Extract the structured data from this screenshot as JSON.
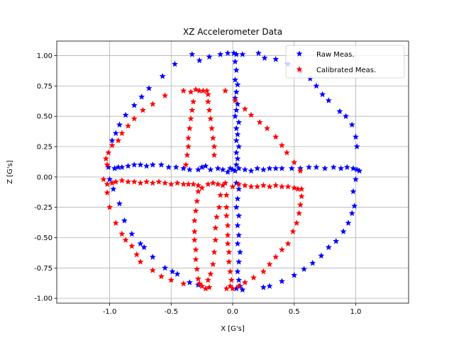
{
  "chart_data": {
    "type": "scatter",
    "title": "XZ Accelerometer Data",
    "xlabel": "X [G's]",
    "ylabel": "Z [G's]",
    "xlim": [
      -1.43,
      1.43
    ],
    "ylim": [
      -1.04,
      1.12
    ],
    "xticks": [
      "-1.0",
      "-0.5",
      "0.0",
      "0.5",
      "1.0"
    ],
    "yticks": [
      "-1.00",
      "-0.75",
      "-0.50",
      "-0.25",
      "0.00",
      "0.25",
      "0.50",
      "0.75",
      "1.00"
    ],
    "grid": true,
    "legend_position": "top-right",
    "marker": "star",
    "series": [
      {
        "name": "Raw Meas.",
        "color": "#0000ff",
        "points": [
          [
            -0.33,
            1.01
          ],
          [
            -0.27,
            0.96
          ],
          [
            -0.19,
            0.99
          ],
          [
            -0.1,
            1.01
          ],
          [
            -0.04,
            1.02
          ],
          [
            0.01,
            1.02
          ],
          [
            0.03,
            1.01
          ],
          [
            0.08,
            1.01
          ],
          [
            0.21,
            1.02
          ],
          [
            0.26,
            0.98
          ],
          [
            0.35,
            0.97
          ],
          [
            0.45,
            0.93
          ],
          [
            0.55,
            0.87
          ],
          [
            0.63,
            0.81
          ],
          [
            0.68,
            0.75
          ],
          [
            0.73,
            0.68
          ],
          [
            0.78,
            0.63
          ],
          [
            0.87,
            0.54
          ],
          [
            0.92,
            0.5
          ],
          [
            0.97,
            0.43
          ],
          [
            1.0,
            0.33
          ],
          [
            1.01,
            0.25
          ],
          [
            -0.47,
            0.93
          ],
          [
            -0.57,
            0.83
          ],
          [
            -0.68,
            0.73
          ],
          [
            -0.74,
            0.66
          ],
          [
            -0.8,
            0.59
          ],
          [
            -0.87,
            0.51
          ],
          [
            -0.92,
            0.43
          ],
          [
            -0.95,
            0.36
          ],
          [
            -0.98,
            0.3
          ],
          [
            -1.01,
            0.08
          ],
          [
            -0.96,
            0.07
          ],
          [
            -0.93,
            0.08
          ],
          [
            -0.9,
            0.08
          ],
          [
            -0.85,
            0.09
          ],
          [
            -0.8,
            0.1
          ],
          [
            -0.75,
            0.1
          ],
          [
            -0.7,
            0.09
          ],
          [
            -0.65,
            0.1
          ],
          [
            -0.58,
            0.1
          ],
          [
            -0.52,
            0.08
          ],
          [
            -0.46,
            0.08
          ],
          [
            -0.4,
            0.07
          ],
          [
            -0.35,
            0.06
          ],
          [
            -0.28,
            0.06
          ],
          [
            -0.25,
            0.08
          ],
          [
            -0.22,
            0.09
          ],
          [
            -0.18,
            0.06
          ],
          [
            -0.12,
            0.07
          ],
          [
            -0.08,
            0.06
          ],
          [
            -0.04,
            0.04
          ],
          [
            -0.02,
            0.07
          ],
          [
            0.0,
            0.06
          ],
          [
            0.02,
            0.05
          ],
          [
            0.05,
            0.07
          ],
          [
            0.1,
            0.06
          ],
          [
            0.15,
            0.05
          ],
          [
            0.2,
            0.07
          ],
          [
            0.25,
            0.06
          ],
          [
            0.3,
            0.07
          ],
          [
            0.35,
            0.07
          ],
          [
            0.4,
            0.07
          ],
          [
            0.48,
            0.07
          ],
          [
            0.55,
            0.07
          ],
          [
            0.62,
            0.08
          ],
          [
            0.68,
            0.08
          ],
          [
            0.75,
            0.07
          ],
          [
            0.82,
            0.08
          ],
          [
            0.88,
            0.07
          ],
          [
            0.93,
            0.08
          ],
          [
            0.98,
            0.07
          ],
          [
            1.01,
            0.06
          ],
          [
            1.03,
            0.05
          ],
          [
            1.0,
            -0.02
          ],
          [
            0.98,
            -0.12
          ],
          [
            0.02,
            0.95
          ],
          [
            0.03,
            0.88
          ],
          [
            0.02,
            0.8
          ],
          [
            0.04,
            0.76
          ],
          [
            0.03,
            0.7
          ],
          [
            0.02,
            0.65
          ],
          [
            0.04,
            0.6
          ],
          [
            0.03,
            0.55
          ],
          [
            0.02,
            0.5
          ],
          [
            0.05,
            0.45
          ],
          [
            0.03,
            0.4
          ],
          [
            0.04,
            0.35
          ],
          [
            0.03,
            0.3
          ],
          [
            0.05,
            0.25
          ],
          [
            0.03,
            0.2
          ],
          [
            0.04,
            0.15
          ],
          [
            0.03,
            0.1
          ],
          [
            0.03,
            -0.05
          ],
          [
            0.05,
            -0.1
          ],
          [
            0.04,
            -0.18
          ],
          [
            0.03,
            -0.25
          ],
          [
            0.05,
            -0.32
          ],
          [
            0.04,
            -0.4
          ],
          [
            0.05,
            -0.48
          ],
          [
            0.04,
            -0.55
          ],
          [
            0.06,
            -0.62
          ],
          [
            0.05,
            -0.7
          ],
          [
            0.04,
            -0.78
          ],
          [
            0.05,
            -0.85
          ],
          [
            0.06,
            -0.9
          ],
          [
            0.03,
            -0.92
          ],
          [
            0.08,
            -0.93
          ],
          [
            -1.0,
            -0.02
          ],
          [
            -0.97,
            -0.1
          ],
          [
            -0.92,
            -0.22
          ],
          [
            -0.88,
            -0.36
          ],
          [
            -0.82,
            -0.47
          ],
          [
            -0.75,
            -0.55
          ],
          [
            -0.72,
            -0.58
          ],
          [
            -0.65,
            -0.66
          ],
          [
            -0.55,
            -0.75
          ],
          [
            -0.49,
            -0.78
          ],
          [
            -0.45,
            -0.8
          ],
          [
            -0.35,
            -0.87
          ],
          [
            -0.28,
            -0.89
          ],
          [
            0.25,
            -0.91
          ],
          [
            0.3,
            -0.9
          ],
          [
            0.4,
            -0.86
          ],
          [
            0.5,
            -0.81
          ],
          [
            0.58,
            -0.76
          ],
          [
            0.65,
            -0.71
          ],
          [
            0.72,
            -0.65
          ],
          [
            0.78,
            -0.58
          ],
          [
            0.84,
            -0.53
          ],
          [
            0.9,
            -0.45
          ],
          [
            0.94,
            -0.38
          ],
          [
            0.97,
            -0.3
          ],
          [
            0.99,
            -0.24
          ]
        ]
      },
      {
        "name": "Calibrated Meas.",
        "color": "#ff0000",
        "points": [
          [
            -0.4,
            0.71
          ],
          [
            -0.34,
            0.7
          ],
          [
            -0.3,
            0.72
          ],
          [
            -0.27,
            0.71
          ],
          [
            -0.24,
            0.71
          ],
          [
            -0.21,
            0.71
          ],
          [
            -0.2,
            0.68
          ],
          [
            -0.32,
            0.62
          ],
          [
            -0.33,
            0.55
          ],
          [
            -0.34,
            0.48
          ],
          [
            -0.35,
            0.4
          ],
          [
            -0.36,
            0.32
          ],
          [
            -0.36,
            0.25
          ],
          [
            -0.37,
            0.18
          ],
          [
            -0.38,
            0.1
          ],
          [
            -0.2,
            0.62
          ],
          [
            -0.19,
            0.55
          ],
          [
            -0.18,
            0.48
          ],
          [
            -0.17,
            0.4
          ],
          [
            -0.16,
            0.32
          ],
          [
            -0.15,
            0.25
          ],
          [
            -0.15,
            0.18
          ],
          [
            -0.06,
            0.71
          ],
          [
            0.02,
            0.63
          ],
          [
            0.1,
            0.56
          ],
          [
            0.15,
            0.51
          ],
          [
            0.22,
            0.45
          ],
          [
            0.28,
            0.4
          ],
          [
            0.35,
            0.33
          ],
          [
            0.4,
            0.26
          ],
          [
            0.44,
            0.2
          ],
          [
            0.5,
            0.12
          ],
          [
            0.55,
            0.05
          ],
          [
            -0.55,
            0.67
          ],
          [
            -0.65,
            0.6
          ],
          [
            -0.73,
            0.55
          ],
          [
            -0.8,
            0.48
          ],
          [
            -0.85,
            0.42
          ],
          [
            -0.9,
            0.36
          ],
          [
            -0.93,
            0.3
          ],
          [
            -0.98,
            0.26
          ],
          [
            -1.01,
            0.2
          ],
          [
            -1.03,
            0.15
          ],
          [
            -1.02,
            0.1
          ],
          [
            -1.05,
            -0.02
          ],
          [
            -1.02,
            -0.06
          ],
          [
            -0.98,
            -0.05
          ],
          [
            -0.95,
            -0.04
          ],
          [
            -0.9,
            -0.03
          ],
          [
            -0.85,
            -0.04
          ],
          [
            -0.8,
            -0.04
          ],
          [
            -0.75,
            -0.05
          ],
          [
            -0.7,
            -0.04
          ],
          [
            -0.65,
            -0.05
          ],
          [
            -0.6,
            -0.04
          ],
          [
            -0.55,
            -0.05
          ],
          [
            -0.5,
            -0.06
          ],
          [
            -0.45,
            -0.05
          ],
          [
            -0.4,
            -0.06
          ],
          [
            -0.36,
            -0.06
          ],
          [
            -0.32,
            -0.06
          ],
          [
            -0.28,
            -0.07
          ],
          [
            -0.25,
            -0.09
          ],
          [
            -0.2,
            -0.06
          ],
          [
            -0.16,
            -0.05
          ],
          [
            -0.12,
            -0.06
          ],
          [
            -0.08,
            -0.07
          ],
          [
            -0.06,
            -0.05
          ],
          [
            0.0,
            -0.08
          ],
          [
            0.05,
            -0.06
          ],
          [
            0.1,
            -0.07
          ],
          [
            0.15,
            -0.08
          ],
          [
            0.2,
            -0.08
          ],
          [
            0.25,
            -0.07
          ],
          [
            0.3,
            -0.08
          ],
          [
            0.35,
            -0.07
          ],
          [
            0.4,
            -0.08
          ],
          [
            0.45,
            -0.08
          ],
          [
            0.5,
            -0.09
          ],
          [
            0.53,
            -0.1
          ],
          [
            0.56,
            -0.1
          ],
          [
            -0.05,
            -0.15
          ],
          [
            -0.05,
            -0.25
          ],
          [
            -0.05,
            -0.32
          ],
          [
            -0.04,
            -0.4
          ],
          [
            -0.04,
            -0.48
          ],
          [
            -0.04,
            -0.55
          ],
          [
            -0.03,
            -0.62
          ],
          [
            -0.03,
            -0.7
          ],
          [
            -0.02,
            -0.78
          ],
          [
            -0.01,
            -0.85
          ],
          [
            -0.02,
            -0.9
          ],
          [
            -0.05,
            -0.92
          ],
          [
            0.0,
            -0.92
          ],
          [
            -0.28,
            -0.12
          ],
          [
            -0.29,
            -0.2
          ],
          [
            -0.3,
            -0.28
          ],
          [
            -0.31,
            -0.36
          ],
          [
            -0.31,
            -0.45
          ],
          [
            -0.31,
            -0.52
          ],
          [
            -0.3,
            -0.6
          ],
          [
            -0.3,
            -0.68
          ],
          [
            -0.29,
            -0.76
          ],
          [
            -0.28,
            -0.84
          ],
          [
            -0.27,
            -0.88
          ],
          [
            -0.25,
            -0.9
          ],
          [
            -0.22,
            -0.92
          ],
          [
            -0.19,
            -0.91
          ],
          [
            -0.1,
            -0.15
          ],
          [
            -0.11,
            -0.25
          ],
          [
            -0.13,
            -0.33
          ],
          [
            -0.14,
            -0.42
          ],
          [
            -0.14,
            -0.52
          ],
          [
            -0.15,
            -0.62
          ],
          [
            -0.16,
            -0.72
          ],
          [
            -0.18,
            -0.8
          ],
          [
            -0.2,
            -0.85
          ],
          [
            -1.02,
            -0.13
          ],
          [
            -1.0,
            -0.25
          ],
          [
            -0.95,
            -0.38
          ],
          [
            -0.9,
            -0.47
          ],
          [
            -0.87,
            -0.52
          ],
          [
            -0.82,
            -0.57
          ],
          [
            -0.78,
            -0.64
          ],
          [
            -0.75,
            -0.7
          ],
          [
            -0.65,
            -0.77
          ],
          [
            -0.58,
            -0.82
          ],
          [
            -0.5,
            -0.85
          ],
          [
            -0.4,
            -0.88
          ],
          [
            0.56,
            -0.16
          ],
          [
            0.55,
            -0.23
          ],
          [
            0.54,
            -0.3
          ],
          [
            0.52,
            -0.38
          ],
          [
            0.49,
            -0.45
          ],
          [
            0.45,
            -0.55
          ],
          [
            0.4,
            -0.6
          ],
          [
            0.35,
            -0.66
          ],
          [
            0.3,
            -0.72
          ],
          [
            0.25,
            -0.78
          ],
          [
            0.17,
            -0.83
          ],
          [
            0.1,
            -0.87
          ],
          [
            0.05,
            -0.9
          ]
        ]
      }
    ]
  }
}
